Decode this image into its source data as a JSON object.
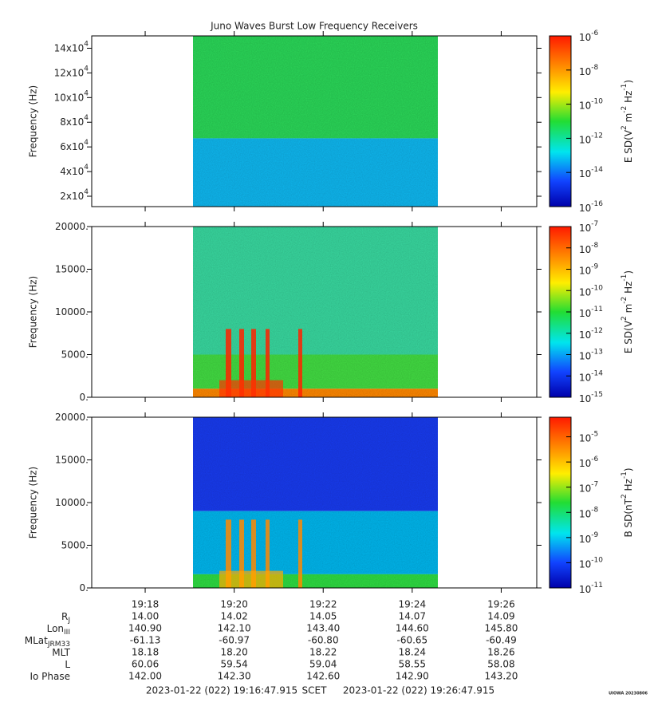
{
  "title": "Juno Waves Burst Low Frequency Receivers",
  "time_axis": {
    "xlim": [
      "2023-01-22T19:16:47.915Z",
      "2023-01-22T19:26:47.915Z"
    ],
    "xticks": [
      {
        "value": "2023-01-22T19:18:00Z",
        "label": "19:18"
      },
      {
        "value": "2023-01-22T19:20:00Z",
        "label": "19:20"
      },
      {
        "value": "2023-01-22T19:22:00Z",
        "label": "19:22"
      },
      {
        "value": "2023-01-22T19:24:00Z",
        "label": "19:24"
      },
      {
        "value": "2023-01-22T19:26:00Z",
        "label": "19:26"
      }
    ]
  },
  "chart_data": [
    {
      "type": "spectrogram",
      "ylabel": "Frequency (Hz)",
      "ylim": [
        11600,
        150000
      ],
      "yticks": [
        {
          "value": 20000,
          "label": "2x10",
          "exp": "4"
        },
        {
          "value": 40000,
          "label": "4x10",
          "exp": "4"
        },
        {
          "value": 60000,
          "label": "6x10",
          "exp": "4"
        },
        {
          "value": 80000,
          "label": "8x10",
          "exp": "4"
        },
        {
          "value": 100000,
          "label": "10x10",
          "exp": "4"
        },
        {
          "value": 120000,
          "label": "12x10",
          "exp": "4"
        },
        {
          "value": 140000,
          "label": "14x10",
          "exp": "4"
        }
      ],
      "colorbar": {
        "scale": "log",
        "clim": [
          1e-16,
          1e-06
        ],
        "label": [
          "E SD(V",
          "2",
          " m",
          "-2",
          " Hz",
          "-1",
          ")"
        ],
        "ticks": [
          {
            "value": 1e-06,
            "label": "10",
            "exp": "-6"
          },
          {
            "value": 1e-08,
            "label": "10",
            "exp": "-8"
          },
          {
            "value": 1e-10,
            "label": "10",
            "exp": "-10"
          },
          {
            "value": 1e-12,
            "label": "10",
            "exp": "-12"
          },
          {
            "value": 1e-14,
            "label": "10",
            "exp": "-14"
          },
          {
            "value": 1e-16,
            "label": "10",
            "exp": "-16"
          }
        ]
      }
    },
    {
      "type": "spectrogram",
      "ylabel": "Frequency (Hz)",
      "ylim": [
        0,
        20000
      ],
      "yticks": [
        {
          "value": 0,
          "label": "0."
        },
        {
          "value": 5000,
          "label": "5000."
        },
        {
          "value": 10000,
          "label": "10000."
        },
        {
          "value": 15000,
          "label": "15000."
        },
        {
          "value": 20000,
          "label": "20000."
        }
      ],
      "colorbar": {
        "scale": "log",
        "clim": [
          1e-15,
          1e-07
        ],
        "label": [
          "E SD(V",
          "2",
          " m",
          "-2",
          " Hz",
          "-1",
          ")"
        ],
        "ticks": [
          {
            "value": 1e-07,
            "label": "10",
            "exp": "-7"
          },
          {
            "value": 1e-08,
            "label": "10",
            "exp": "-8"
          },
          {
            "value": 1e-09,
            "label": "10",
            "exp": "-9"
          },
          {
            "value": 1e-10,
            "label": "10",
            "exp": "-10"
          },
          {
            "value": 1e-11,
            "label": "10",
            "exp": "-11"
          },
          {
            "value": 1e-12,
            "label": "10",
            "exp": "-12"
          },
          {
            "value": 1e-13,
            "label": "10",
            "exp": "-13"
          },
          {
            "value": 1e-14,
            "label": "10",
            "exp": "-14"
          },
          {
            "value": 1e-15,
            "label": "10",
            "exp": "-15"
          }
        ]
      }
    },
    {
      "type": "spectrogram",
      "ylabel": "Frequency (Hz)",
      "ylim": [
        0,
        20000
      ],
      "yticks": [
        {
          "value": 0,
          "label": "0."
        },
        {
          "value": 5000,
          "label": "5000."
        },
        {
          "value": 10000,
          "label": "10000."
        },
        {
          "value": 15000,
          "label": "15000."
        },
        {
          "value": 20000,
          "label": "20000."
        }
      ],
      "colorbar": {
        "scale": "log",
        "clim": [
          1e-11,
          6e-05
        ],
        "label": [
          "B SD(nT",
          "2",
          " Hz",
          "-1",
          ")"
        ],
        "ticks": [
          {
            "value": 1e-05,
            "label": "10",
            "exp": "-5"
          },
          {
            "value": 1e-06,
            "label": "10",
            "exp": "-6"
          },
          {
            "value": 1e-07,
            "label": "10",
            "exp": "-7"
          },
          {
            "value": 1e-08,
            "label": "10",
            "exp": "-8"
          },
          {
            "value": 1e-09,
            "label": "10",
            "exp": "-9"
          },
          {
            "value": 1e-10,
            "label": "10",
            "exp": "-10"
          },
          {
            "value": 1e-11,
            "label": "10",
            "exp": "-11"
          }
        ]
      }
    }
  ],
  "ephemeris": [
    {
      "label": "R",
      "sub": "J",
      "values": [
        "14.00",
        "14.02",
        "14.05",
        "14.07",
        "14.09"
      ]
    },
    {
      "label": "Lon",
      "sub": "III",
      "values": [
        "140.90",
        "142.10",
        "143.40",
        "144.60",
        "145.80"
      ]
    },
    {
      "label": "MLat",
      "sub": "JRM33",
      "values": [
        "-61.13",
        "-60.97",
        "-60.80",
        "-60.65",
        "-60.49"
      ]
    },
    {
      "label": "MLT",
      "values": [
        "18.18",
        "18.20",
        "18.22",
        "18.24",
        "18.26"
      ]
    },
    {
      "label": "L",
      "values": [
        "60.06",
        "59.54",
        "59.04",
        "58.55",
        "58.08"
      ]
    },
    {
      "label": "Io Phase",
      "values": [
        "142.00",
        "142.30",
        "142.60",
        "142.90",
        "143.20"
      ]
    }
  ],
  "footer": {
    "start": "2023-01-22 (022) 19:16:47.915",
    "middle": "SCET",
    "end": "2023-01-22 (022) 19:26:47.915",
    "stamp": "UIOWA 20230806"
  }
}
